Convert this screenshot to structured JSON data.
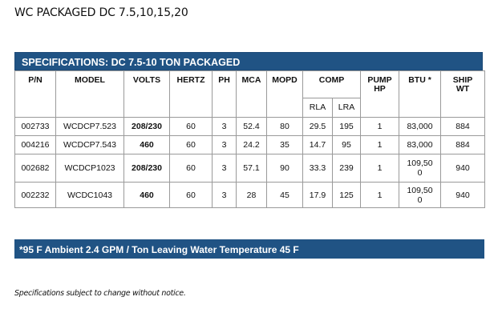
{
  "document_title": "WC PACKAGED DC 7.5,10,15,20",
  "spec_header": "SPECIFICATIONS: DC 7.5-10 TON PACKAGED",
  "columns": {
    "pn": "P/N",
    "model": "MODEL",
    "volts": "VOLTS",
    "hertz": "HERTZ",
    "ph": "PH",
    "mca": "MCA",
    "mopd": "MOPD",
    "comp": "COMP",
    "pump_hp_line1": "PUMP",
    "pump_hp_line2": "HP",
    "btu": "BTU *",
    "ship_wt_line1": "SHIP",
    "ship_wt_line2": "WT",
    "rla": "RLA",
    "lra": "LRA"
  },
  "rows": [
    {
      "pn": "002733",
      "model": "WCDCP7.523",
      "volts": "208/230",
      "hertz": "60",
      "ph": "3",
      "mca": "52.4",
      "mopd": "80",
      "rla": "29.5",
      "lra": "195",
      "pump_hp": "1",
      "btu": "83,000",
      "btu2": "",
      "ship_wt": "884"
    },
    {
      "pn": "004216",
      "model": "WCDCP7.543",
      "volts": "460",
      "hertz": "60",
      "ph": "3",
      "mca": "24.2",
      "mopd": "35",
      "rla": "14.7",
      "lra": "95",
      "pump_hp": "1",
      "btu": "83,000",
      "btu2": "",
      "ship_wt": "884"
    },
    {
      "pn": "002682",
      "model": "WCDCP1023",
      "volts": "208/230",
      "hertz": "60",
      "ph": "3",
      "mca": "57.1",
      "mopd": "90",
      "rla": "33.3",
      "lra": "239",
      "pump_hp": "1",
      "btu": "109,50",
      "btu2": "0",
      "ship_wt": "940"
    },
    {
      "pn": "002232",
      "model": "WCDC1043",
      "volts": "460",
      "hertz": "60",
      "ph": "3",
      "mca": "28",
      "mopd": "45",
      "rla": "17.9",
      "lra": "125",
      "pump_hp": "1",
      "btu": "109,50",
      "btu2": "0",
      "ship_wt": "940"
    }
  ],
  "note": "*95 F Ambient 2.4 GPM / Ton Leaving Water Temperature 45 F",
  "disclaimer": "Specifications subject to change without notice.",
  "colors": {
    "header_bg": "#205384",
    "header_text": "#ffffff",
    "grid": "#9a9a9a"
  }
}
